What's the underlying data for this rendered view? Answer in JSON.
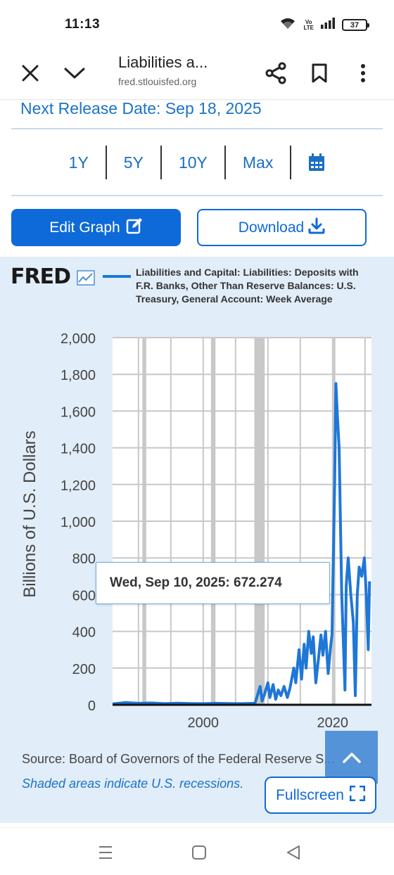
{
  "status": {
    "time": "11:13",
    "battery": "37",
    "volte_top": "Vo",
    "volte_bottom": "LTE"
  },
  "browser": {
    "title": "Liabilities a...",
    "url": "fred.stlouisfed.org",
    "icons": [
      "close-icon",
      "chevron-down-icon",
      "share-icon",
      "bookmark-icon",
      "more-vertical-icon"
    ]
  },
  "release": "Next Release Date: Sep 18, 2025",
  "ranges": [
    "1Y",
    "5Y",
    "10Y",
    "Max"
  ],
  "buttons": {
    "edit": "Edit Graph",
    "download": "Download",
    "fullscreen": "Fullscreen"
  },
  "graph": {
    "logo": "FRED",
    "legend": "Liabilities and Capital: Liabilities: Deposits with F.R. Banks, Other Than Reserve Balances: U.S. Treasury, General Account: Week Average",
    "tooltip": "Wed, Sep 10, 2025:  672.274",
    "source": "Source: Board of Governors of the Federal Reserve S...",
    "recession_note": "Shaded areas indicate U.S. recessions."
  },
  "colors": {
    "accent": "#0d6ad8",
    "series": "#1f77d6",
    "panel": "#e1edf8",
    "recession": "#c8c8c8"
  },
  "chart_data": {
    "type": "line",
    "title": "",
    "xlabel": "",
    "ylabel": "Billions of U.S. Dollars",
    "ylim": [
      0,
      2000
    ],
    "xlim": [
      1986,
      2026
    ],
    "yticks": [
      "0",
      "200",
      "400",
      "600",
      "800",
      "1,000",
      "1,200",
      "1,400",
      "1,600",
      "1,800",
      "2,000"
    ],
    "xticks": [
      "2000",
      "2020"
    ],
    "recessions": [
      [
        1990.6,
        1991.2
      ],
      [
        2001.2,
        2001.9
      ],
      [
        2007.9,
        2009.5
      ],
      [
        2020.1,
        2020.4
      ]
    ],
    "series": [
      {
        "name": "Liabilities and Capital: Liabilities: Deposits with F.R. Banks, Other Than Reserve Balances: U.S. Treasury, General Account: Week Average",
        "points": [
          [
            1986.0,
            5
          ],
          [
            1988.0,
            12
          ],
          [
            1990.0,
            8
          ],
          [
            1992.0,
            10
          ],
          [
            1994.0,
            6
          ],
          [
            1996.0,
            9
          ],
          [
            1998.0,
            7
          ],
          [
            2000.0,
            6
          ],
          [
            2002.0,
            8
          ],
          [
            2004.0,
            7
          ],
          [
            2006.0,
            6
          ],
          [
            2008.0,
            8
          ],
          [
            2008.8,
            100
          ],
          [
            2009.1,
            20
          ],
          [
            2009.5,
            60
          ],
          [
            2010.0,
            120
          ],
          [
            2010.3,
            40
          ],
          [
            2010.8,
            110
          ],
          [
            2011.2,
            30
          ],
          [
            2011.6,
            80
          ],
          [
            2012.0,
            50
          ],
          [
            2012.5,
            100
          ],
          [
            2013.0,
            40
          ],
          [
            2013.4,
            90
          ],
          [
            2014.0,
            200
          ],
          [
            2014.3,
            120
          ],
          [
            2014.8,
            300
          ],
          [
            2015.2,
            140
          ],
          [
            2015.6,
            330
          ],
          [
            2015.9,
            200
          ],
          [
            2016.3,
            400
          ],
          [
            2016.7,
            280
          ],
          [
            2017.0,
            370
          ],
          [
            2017.4,
            120
          ],
          [
            2017.8,
            250
          ],
          [
            2018.2,
            380
          ],
          [
            2018.5,
            270
          ],
          [
            2018.9,
            400
          ],
          [
            2019.3,
            170
          ],
          [
            2019.7,
            320
          ],
          [
            2019.9,
            380
          ],
          [
            2020.3,
            1200
          ],
          [
            2020.5,
            1750
          ],
          [
            2020.7,
            1600
          ],
          [
            2021.0,
            1400
          ],
          [
            2021.4,
            600
          ],
          [
            2021.7,
            300
          ],
          [
            2021.9,
            80
          ],
          [
            2022.1,
            650
          ],
          [
            2022.4,
            800
          ],
          [
            2022.8,
            600
          ],
          [
            2023.2,
            450
          ],
          [
            2023.5,
            50
          ],
          [
            2023.8,
            600
          ],
          [
            2024.1,
            750
          ],
          [
            2024.5,
            700
          ],
          [
            2024.9,
            800
          ],
          [
            2025.2,
            600
          ],
          [
            2025.5,
            300
          ],
          [
            2025.7,
            672.274
          ]
        ]
      }
    ]
  }
}
